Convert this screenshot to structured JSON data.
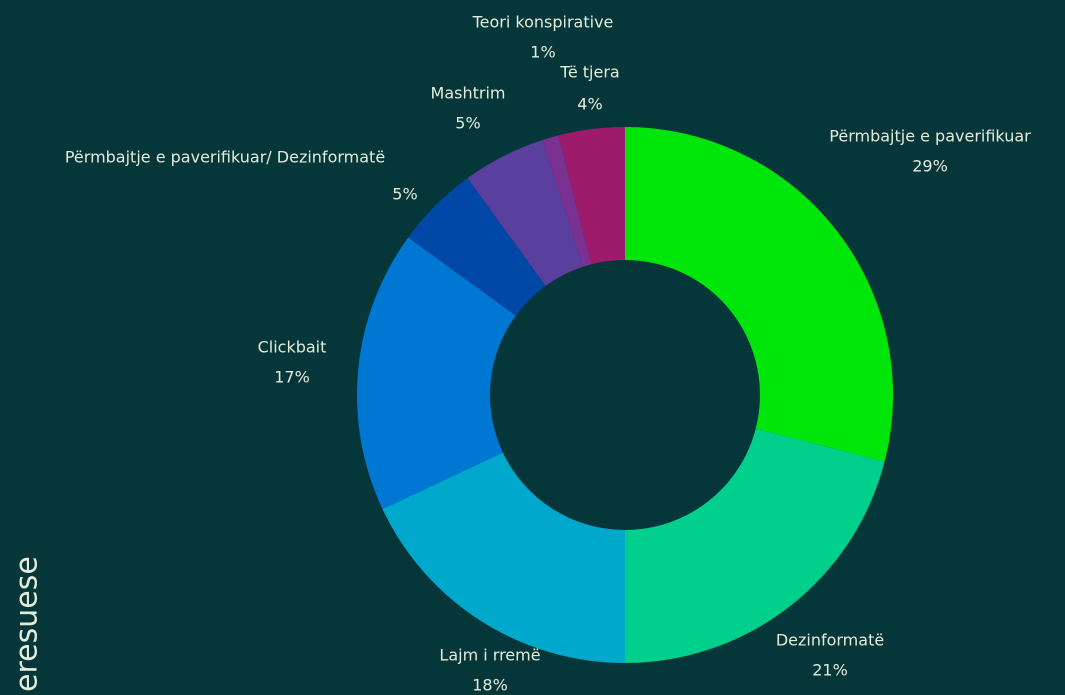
{
  "chart_data": {
    "type": "donut",
    "side_label": "eresuese",
    "categories": [
      "Përmbajtje e paverifikuar",
      "Dezinformatë",
      "Lajm i rremë",
      "Clickbait",
      "Përmbajtje e paverifikuar/ Dezinformatë",
      "Mashtrim",
      "Teori konspirative",
      "Të tjera"
    ],
    "values": [
      29,
      21,
      18,
      17,
      5,
      5,
      1,
      4
    ],
    "value_labels": [
      "29%",
      "21%",
      "18%",
      "17%",
      "5%",
      "5%",
      "1%",
      "4%"
    ],
    "colors": [
      "#00e60a",
      "#00d08c",
      "#00a8cb",
      "#0077d3",
      "#0047a6",
      "#5b3f9e",
      "#7b3192",
      "#9c1b6b"
    ]
  }
}
